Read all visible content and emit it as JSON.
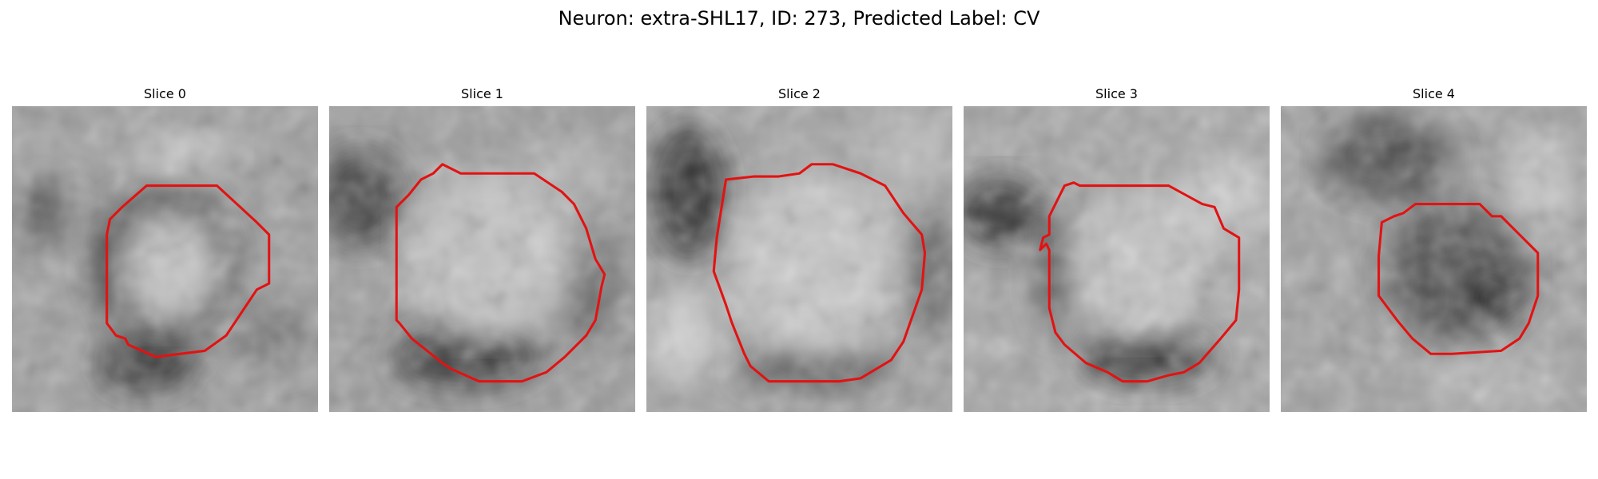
{
  "figure": {
    "title": "Neuron: extra-SHL17, ID: 273, Predicted Label: CV",
    "contour_color": "#e31212"
  },
  "panels": [
    {
      "title": "Slice 0"
    },
    {
      "title": "Slice 1"
    },
    {
      "title": "Slice 2"
    },
    {
      "title": "Slice 3"
    },
    {
      "title": "Slice 4"
    }
  ]
}
